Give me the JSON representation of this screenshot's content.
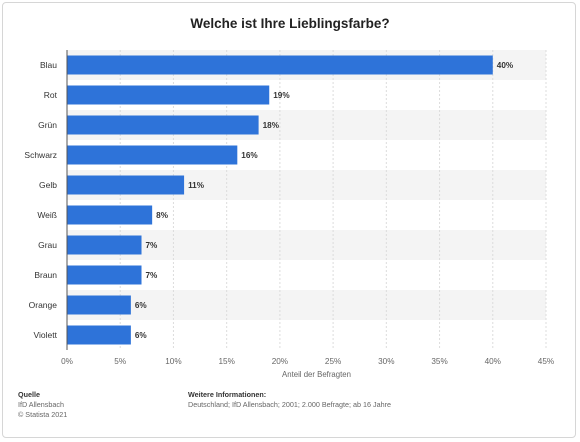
{
  "chart_data": {
    "type": "bar",
    "orientation": "horizontal",
    "title": "Welche ist Ihre Lieblingsfarbe?",
    "categories": [
      "Blau",
      "Rot",
      "Grün",
      "Schwarz",
      "Gelb",
      "Weiß",
      "Grau",
      "Braun",
      "Orange",
      "Violett"
    ],
    "values": [
      40,
      19,
      18,
      16,
      11,
      8,
      7,
      7,
      6,
      6
    ],
    "value_labels": [
      "40%",
      "19%",
      "18%",
      "16%",
      "11%",
      "8%",
      "7%",
      "7%",
      "6%",
      "6%"
    ],
    "xlim": [
      0,
      45
    ],
    "x_ticks": [
      "0%",
      "5%",
      "10%",
      "15%",
      "20%",
      "25%",
      "30%",
      "35%",
      "40%",
      "45%"
    ],
    "xlabel": "Anteil der Befragten",
    "grid": true,
    "bar_color": "#2e73d9",
    "stripe_color": "#f4f4f4"
  },
  "footer": {
    "source_heading": "Quelle",
    "source_line1": "IfD Allensbach",
    "source_line2": "© Statista 2021",
    "info_heading": "Weitere Informationen:",
    "info_text": "Deutschland; IfD Allensbach; 2001; 2.000 Befragte; ab 16 Jahre"
  }
}
